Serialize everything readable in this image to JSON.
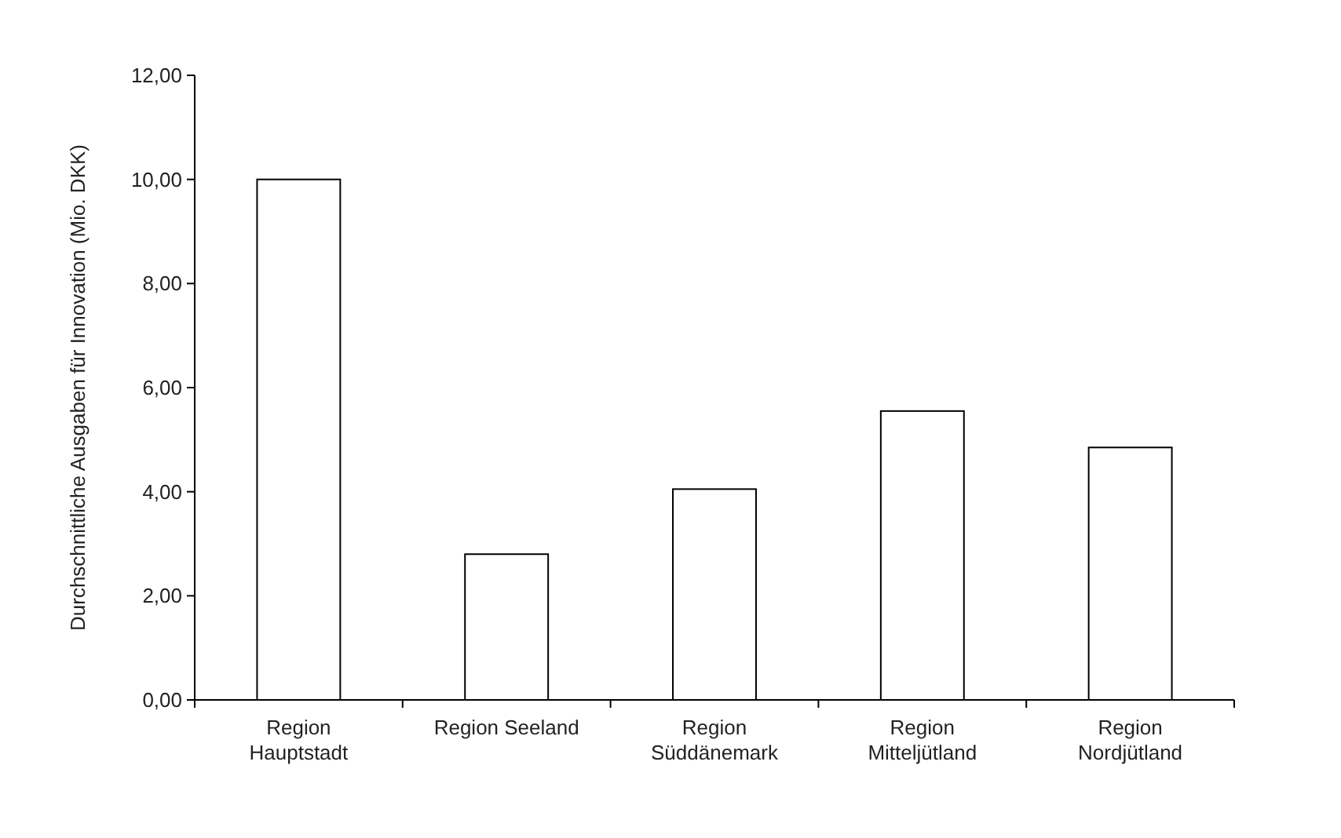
{
  "chart_data": {
    "type": "bar",
    "ylabel": "Durchschnittliche Ausgaben für Innovation (Mio. DKK)",
    "categories": [
      "Region\nHauptstadt",
      "Region Seeland",
      "Region\nSüddänemark",
      "Region\nMitteljütland",
      "Region\nNordjütland"
    ],
    "values": [
      10.0,
      2.8,
      4.05,
      5.55,
      4.85
    ],
    "color": "#ffffff",
    "ylim": [
      0,
      12
    ],
    "yticks": [
      {
        "value": 0,
        "label": "0,00"
      },
      {
        "value": 2,
        "label": "2,00"
      },
      {
        "value": 4,
        "label": "4,00"
      },
      {
        "value": 6,
        "label": "6,00"
      },
      {
        "value": 8,
        "label": "8,00"
      },
      {
        "value": 10,
        "label": "10,00"
      },
      {
        "value": 12,
        "label": "12,00"
      }
    ],
    "grid": false
  }
}
